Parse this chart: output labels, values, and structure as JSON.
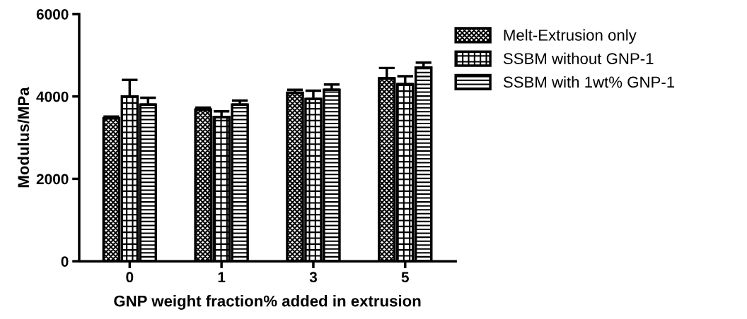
{
  "chart_data": {
    "type": "bar",
    "xlabel": "GNP weight fraction% added in extrusion",
    "ylabel": "Modulus/MPa",
    "categories": [
      "0",
      "1",
      "3",
      "5"
    ],
    "series": [
      {
        "name": "Melt-Extrusion only",
        "color": "#000000",
        "values": [
          3470,
          3680,
          4090,
          4440
        ],
        "errors": [
          40,
          50,
          70,
          250
        ]
      },
      {
        "name": "SSBM without GNP-1",
        "color": "#000000",
        "values": [
          4000,
          3500,
          3940,
          4300
        ],
        "errors": [
          400,
          140,
          200,
          190
        ]
      },
      {
        "name": "SSBM with 1wt% GNP-1",
        "color": "#000000",
        "values": [
          3800,
          3800,
          4160,
          4700
        ],
        "errors": [
          170,
          100,
          130,
          120
        ]
      }
    ],
    "ylim": [
      0,
      6000
    ],
    "yticks": [
      0,
      2000,
      4000,
      6000
    ],
    "grid": false,
    "legend": "top right"
  }
}
